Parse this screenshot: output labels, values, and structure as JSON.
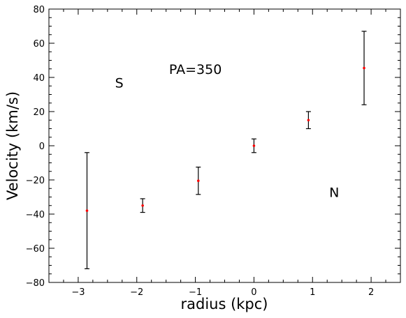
{
  "chart_data": {
    "type": "scatter",
    "title": "",
    "xlabel": "radius (kpc)",
    "ylabel": "Velocity (km/s)",
    "xlim": [
      -3.5,
      2.5
    ],
    "ylim": [
      -80,
      80
    ],
    "xticks": [
      -3,
      -2,
      -1,
      0,
      1,
      2
    ],
    "yticks": [
      -80,
      -60,
      -40,
      -20,
      0,
      20,
      40,
      60,
      80
    ],
    "xtick_labels": [
      "−3",
      "−2",
      "−1",
      "0",
      "1",
      "2"
    ],
    "ytick_labels": [
      "−80",
      "−60",
      "−40",
      "−20",
      "0",
      "20",
      "40",
      "60",
      "80"
    ],
    "grid": false,
    "marker_color": "#ff0000",
    "errorbar_color": "#000000",
    "points": [
      {
        "x": -2.85,
        "y": -38,
        "yerr_low": 34,
        "yerr_high": 34
      },
      {
        "x": -1.9,
        "y": -35,
        "yerr_low": 4,
        "yerr_high": 4
      },
      {
        "x": -0.95,
        "y": -20.5,
        "yerr_low": 8,
        "yerr_high": 8
      },
      {
        "x": 0.0,
        "y": 0,
        "yerr_low": 4,
        "yerr_high": 4
      },
      {
        "x": 0.93,
        "y": 15,
        "yerr_low": 5,
        "yerr_high": 5
      },
      {
        "x": 1.88,
        "y": 45.5,
        "yerr_low": 21.5,
        "yerr_high": 21.5
      }
    ],
    "annotations": [
      {
        "text": "PA=350",
        "x": -1.0,
        "y": 42
      },
      {
        "text": "S",
        "x": -2.3,
        "y": 34
      },
      {
        "text": "N",
        "x": 1.37,
        "y": -30
      }
    ]
  }
}
